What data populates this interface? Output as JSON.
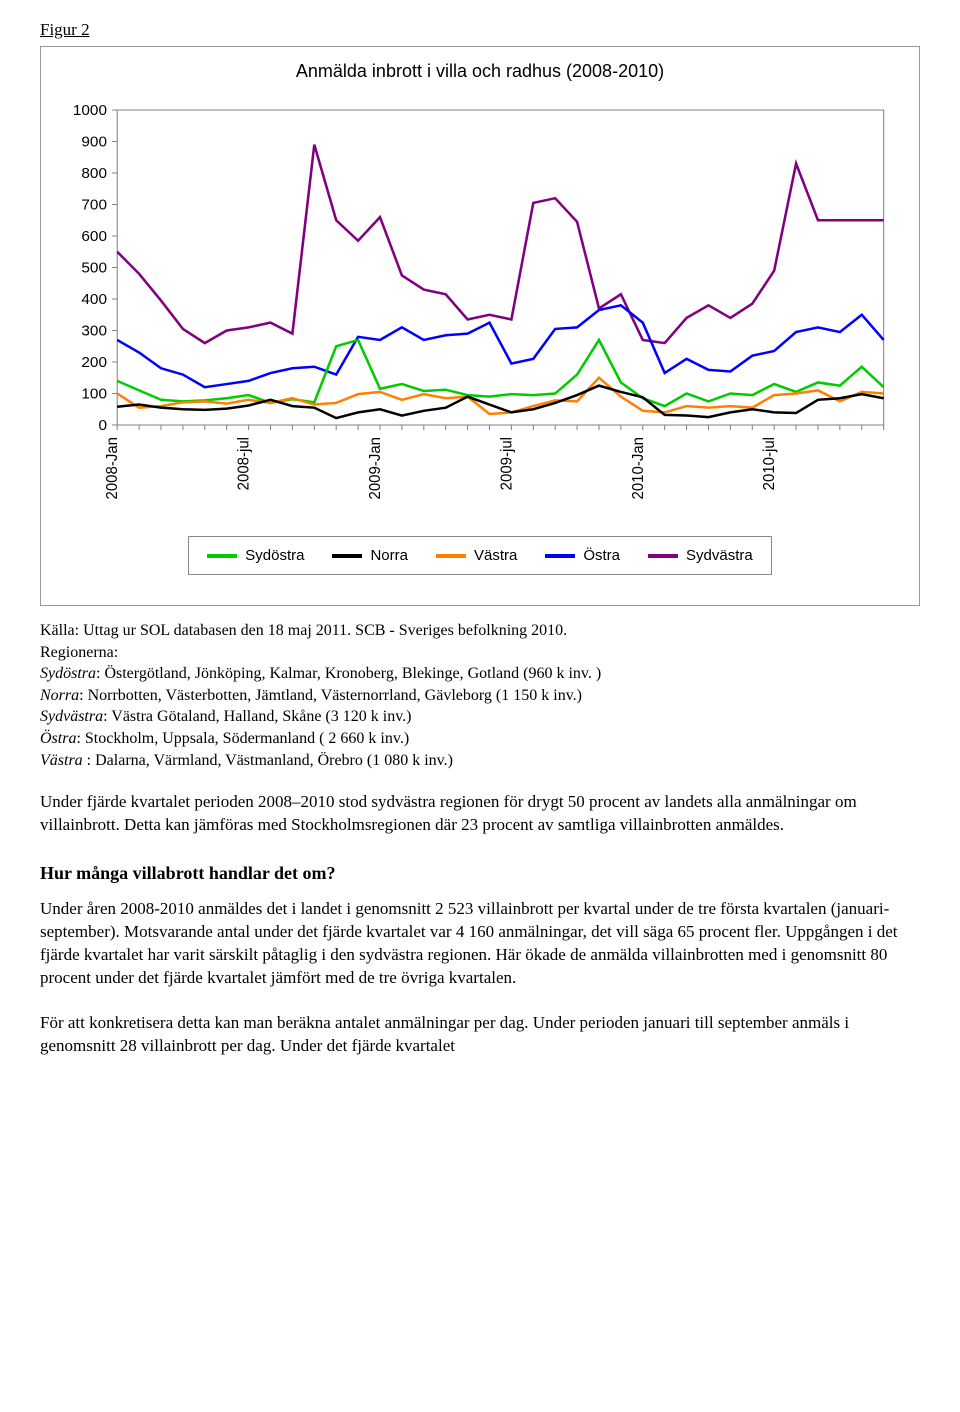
{
  "figure_label": "Figur 2",
  "chart": {
    "type": "line",
    "title": "Anmälda inbrott i villa och radhus (2008-2010)",
    "ylim": [
      0,
      1000
    ],
    "ytick_step": 100,
    "x_n": 36,
    "xlabels": {
      "0": "2008-Jan",
      "6": "2008-jul",
      "12": "2009-Jan",
      "18": "2009-jul",
      "24": "2010-Jan",
      "30": "2010-jul"
    },
    "background_color": "#ffffff",
    "grid_color": "#808080",
    "line_width": 2.5,
    "axis_font_size": 15,
    "axis_font_family": "Arial",
    "series": [
      {
        "name": "Sydvästra",
        "color": "#800080",
        "values": [
          550,
          480,
          395,
          305,
          260,
          300,
          310,
          325,
          290,
          890,
          650,
          585,
          660,
          475,
          430,
          415,
          335,
          350,
          335,
          705,
          720,
          645,
          370,
          415,
          270,
          260,
          340,
          380,
          340,
          385,
          490,
          830,
          650,
          650,
          650,
          650
        ]
      },
      {
        "name": "Östra",
        "color": "#0000ff",
        "values": [
          270,
          230,
          180,
          160,
          120,
          130,
          140,
          165,
          180,
          185,
          160,
          280,
          270,
          310,
          270,
          285,
          290,
          325,
          195,
          210,
          305,
          310,
          365,
          380,
          325,
          165,
          210,
          175,
          170,
          220,
          235,
          295,
          310,
          295,
          350,
          270
        ]
      },
      {
        "name": "Sydöstra",
        "color": "#00cc00",
        "values": [
          140,
          110,
          80,
          75,
          78,
          85,
          95,
          70,
          82,
          72,
          250,
          270,
          115,
          130,
          108,
          112,
          95,
          90,
          98,
          95,
          100,
          160,
          270,
          135,
          85,
          60,
          100,
          75,
          100,
          95,
          130,
          105,
          135,
          125,
          185,
          120
        ]
      },
      {
        "name": "Västra",
        "color": "#ff8000",
        "values": [
          100,
          55,
          60,
          72,
          75,
          68,
          80,
          70,
          85,
          65,
          70,
          98,
          105,
          80,
          98,
          85,
          90,
          35,
          40,
          60,
          78,
          75,
          150,
          90,
          45,
          40,
          60,
          55,
          60,
          55,
          95,
          100,
          110,
          75,
          105,
          100
        ]
      },
      {
        "name": "Norra",
        "color": "#000000",
        "values": [
          58,
          65,
          55,
          50,
          48,
          52,
          62,
          80,
          60,
          55,
          22,
          40,
          50,
          30,
          45,
          55,
          90,
          65,
          40,
          50,
          70,
          95,
          125,
          105,
          88,
          32,
          30,
          25,
          40,
          50,
          40,
          38,
          80,
          85,
          98,
          85
        ]
      }
    ]
  },
  "legend": [
    {
      "label": "Sydöstra",
      "color": "#00cc00"
    },
    {
      "label": "Norra",
      "color": "#000000"
    },
    {
      "label": "Västra",
      "color": "#ff8000"
    },
    {
      "label": "Östra",
      "color": "#0000ff"
    },
    {
      "label": "Sydvästra",
      "color": "#800080"
    }
  ],
  "source": {
    "line1": "Källa: Uttag ur SOL databasen den 18 maj 2011. SCB - Sveriges befolkning 2010.",
    "line2": "Regionerna:",
    "region_lines": [
      {
        "name": "Sydöstra",
        "rest": ": Östergötland, Jönköping, Kalmar, Kronoberg, Blekinge, Gotland (960 k inv. )"
      },
      {
        "name": "Norra",
        "rest": ": Norrbotten, Västerbotten, Jämtland, Västernorrland, Gävleborg (1 150 k inv.)"
      },
      {
        "name": "Sydvästra",
        "rest": ": Västra Götaland, Halland, Skåne (3 120 k inv.)"
      },
      {
        "name": "Östra",
        "rest": ": Stockholm, Uppsala, Södermanland ( 2 660 k inv.)"
      },
      {
        "name": "Västra ",
        "rest": ": Dalarna, Värmland, Västmanland, Örebro (1 080 k inv.)"
      }
    ]
  },
  "para1": "Under fjärde kvartalet perioden 2008–2010 stod sydvästra regionen för drygt 50 procent av landets alla anmälningar om villainbrott. Detta kan jämföras med Stockholmsregionen där 23 procent av samtliga villainbrotten anmäldes.",
  "heading2": "Hur många villabrott handlar det om?",
  "para2": "Under åren 2008-2010 anmäldes det i landet i genomsnitt 2 523 villainbrott per kvartal under de tre första kvartalen (januari-september). Motsvarande antal under det fjärde kvartalet var 4 160 anmälningar, det vill säga 65 procent fler. Uppgången i det fjärde kvartalet har varit särskilt påtaglig i den sydvästra regionen. Här ökade de anmälda villainbrotten med i genomsnitt 80 procent under det fjärde kvartalet jämfört med de tre övriga kvartalen.",
  "para3": "För att konkretisera detta kan man beräkna antalet anmälningar per dag. Under perioden januari till september anmäls i genomsnitt 28 villainbrott per dag. Under det fjärde kvartalet"
}
